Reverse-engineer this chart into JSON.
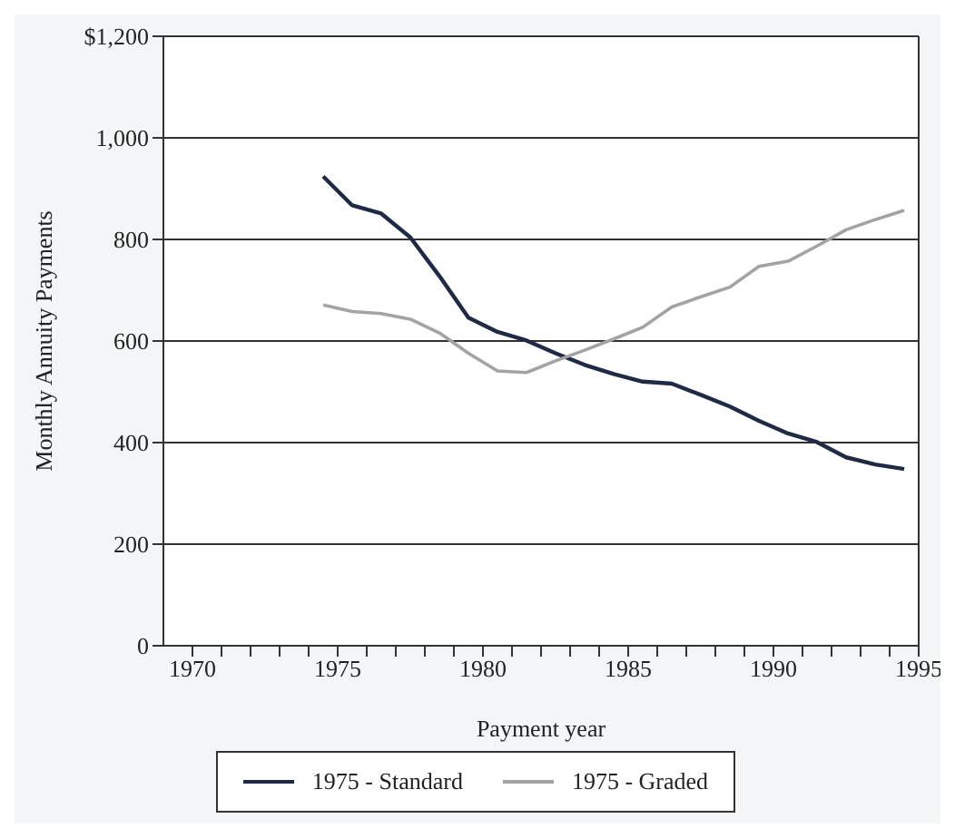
{
  "chart_data": {
    "type": "line",
    "xlabel": "Payment year",
    "ylabel": "Monthly Annuity Payments",
    "x": [
      1974.5,
      1975.5,
      1976.5,
      1977.5,
      1978.5,
      1979.5,
      1980.5,
      1981.5,
      1982.5,
      1983.5,
      1984.5,
      1985.5,
      1986.5,
      1987.5,
      1988.5,
      1989.5,
      1990.5,
      1991.5,
      1992.5,
      1993.5,
      1994.5
    ],
    "series": [
      {
        "name": "1975 - Standard",
        "color": "#1f2a44",
        "values": [
          924,
          867,
          851,
          804,
          728,
          646,
          618,
          601,
          576,
          553,
          535,
          520,
          516,
          494,
          471,
          443,
          418,
          401,
          371,
          357,
          348
        ]
      },
      {
        "name": "1975 - Graded",
        "color": "#a3a3a3",
        "values": [
          671,
          658,
          654,
          643,
          616,
          576,
          541,
          538,
          561,
          582,
          604,
          627,
          667,
          687,
          706,
          747,
          757,
          787,
          819,
          839,
          857
        ]
      }
    ],
    "xlim": [
      1969,
      1995
    ],
    "xticks": [
      {
        "value": 1970,
        "label": "1970"
      },
      {
        "value": 1971,
        "label": null
      },
      {
        "value": 1972,
        "label": null
      },
      {
        "value": 1973,
        "label": null
      },
      {
        "value": 1974,
        "label": null
      },
      {
        "value": 1975,
        "label": "1975"
      },
      {
        "value": 1976,
        "label": null
      },
      {
        "value": 1977,
        "label": null
      },
      {
        "value": 1978,
        "label": null
      },
      {
        "value": 1979,
        "label": null
      },
      {
        "value": 1980,
        "label": "1980"
      },
      {
        "value": 1981,
        "label": null
      },
      {
        "value": 1982,
        "label": null
      },
      {
        "value": 1983,
        "label": null
      },
      {
        "value": 1984,
        "label": null
      },
      {
        "value": 1985,
        "label": "1985"
      },
      {
        "value": 1986,
        "label": null
      },
      {
        "value": 1987,
        "label": null
      },
      {
        "value": 1988,
        "label": null
      },
      {
        "value": 1989,
        "label": null
      },
      {
        "value": 1990,
        "label": "1990"
      },
      {
        "value": 1991,
        "label": null
      },
      {
        "value": 1992,
        "label": null
      },
      {
        "value": 1993,
        "label": null
      },
      {
        "value": 1994,
        "label": null
      },
      {
        "value": 1995,
        "label": "1995"
      }
    ],
    "ylim": [
      0,
      1200
    ],
    "yticks": [
      {
        "value": 0,
        "label": "0"
      },
      {
        "value": 200,
        "label": "200"
      },
      {
        "value": 400,
        "label": "400"
      },
      {
        "value": 600,
        "label": "600"
      },
      {
        "value": 800,
        "label": "800"
      },
      {
        "value": 1000,
        "label": "1,000"
      },
      {
        "value": 1200,
        "label": "$1,200"
      }
    ],
    "grid": "y",
    "legend": "bottom",
    "marker": "none",
    "line_style": "solid"
  }
}
